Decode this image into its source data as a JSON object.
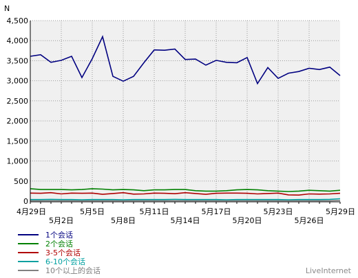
{
  "chart_data": {
    "type": "line",
    "ylabel": "N",
    "ylim": [
      0,
      4500
    ],
    "yticks": [
      0,
      500,
      1000,
      1500,
      2000,
      2500,
      3000,
      3500,
      4000,
      4500
    ],
    "ytick_labels": [
      "0",
      "500",
      "1,000",
      "1,500",
      "2,000",
      "2,500",
      "3,000",
      "3,500",
      "4,000",
      "4,500"
    ],
    "grid": true,
    "legend_position": "bottom-left",
    "x": [
      "4月29日",
      "4月30日",
      "5月1日",
      "5月2日",
      "5月3日",
      "5月4日",
      "5月5日",
      "5月6日",
      "5月7日",
      "5月8日",
      "5月9日",
      "5月10日",
      "5月11日",
      "5月12日",
      "5月13日",
      "5月14日",
      "5月15日",
      "5月16日",
      "5月17日",
      "5月18日",
      "5月19日",
      "5月20日",
      "5月21日",
      "5月22日",
      "5月23日",
      "5月24日",
      "5月25日",
      "5月26日",
      "5月27日",
      "5月28日",
      "5月29日"
    ],
    "xtick_labels": [
      {
        "i": 0,
        "label": "4月29日",
        "row": 0
      },
      {
        "i": 3,
        "label": "5月2日",
        "row": 1
      },
      {
        "i": 6,
        "label": "5月5日",
        "row": 0
      },
      {
        "i": 9,
        "label": "5月8日",
        "row": 1
      },
      {
        "i": 12,
        "label": "5月11日",
        "row": 0
      },
      {
        "i": 15,
        "label": "5月14日",
        "row": 1
      },
      {
        "i": 18,
        "label": "5月17日",
        "row": 0
      },
      {
        "i": 21,
        "label": "5月20日",
        "row": 1
      },
      {
        "i": 24,
        "label": "5月23日",
        "row": 0
      },
      {
        "i": 27,
        "label": "5月26日",
        "row": 1
      },
      {
        "i": 30,
        "label": "5月29日",
        "row": 0
      }
    ],
    "series": [
      {
        "name": "1个会话",
        "color": "#000080",
        "values": [
          3610,
          3650,
          3460,
          3510,
          3610,
          3080,
          3550,
          4100,
          3110,
          2990,
          3110,
          3450,
          3770,
          3760,
          3790,
          3530,
          3540,
          3390,
          3510,
          3460,
          3450,
          3580,
          2930,
          3330,
          3060,
          3190,
          3230,
          3310,
          3280,
          3340,
          3130
        ]
      },
      {
        "name": "2个会话",
        "color": "#008000",
        "values": [
          310,
          290,
          290,
          290,
          280,
          290,
          310,
          300,
          280,
          290,
          280,
          260,
          280,
          280,
          290,
          290,
          260,
          250,
          250,
          260,
          280,
          290,
          280,
          260,
          250,
          240,
          250,
          270,
          260,
          250,
          270
        ]
      },
      {
        "name": "3-5个会话",
        "color": "#b00000",
        "values": [
          200,
          195,
          210,
          180,
          200,
          195,
          200,
          170,
          190,
          210,
          175,
          180,
          200,
          195,
          185,
          210,
          190,
          170,
          195,
          200,
          200,
          195,
          180,
          190,
          200,
          155,
          150,
          180,
          175,
          180,
          195
        ]
      },
      {
        "name": "6-10个会话",
        "color": "#00a0a0",
        "values": [
          40,
          40,
          45,
          40,
          40,
          35,
          40,
          40,
          40,
          35,
          40,
          40,
          40,
          40,
          45,
          40,
          40,
          40,
          40,
          35,
          40,
          40,
          40,
          40,
          40,
          35,
          40,
          40,
          40,
          45,
          60
        ]
      },
      {
        "name": "10个以上的会话",
        "color": "#808080",
        "values": [
          10,
          10,
          10,
          10,
          10,
          10,
          10,
          10,
          10,
          10,
          10,
          10,
          10,
          10,
          10,
          10,
          10,
          10,
          10,
          10,
          10,
          10,
          10,
          10,
          10,
          10,
          10,
          10,
          10,
          10,
          15
        ]
      }
    ]
  },
  "legend": {
    "items": [
      {
        "label": "1个会话",
        "color": "#000080"
      },
      {
        "label": "2个会话",
        "color": "#008000"
      },
      {
        "label": "3-5个会话",
        "color": "#b00000"
      },
      {
        "label": "6-10个会话",
        "color": "#00a0a0"
      },
      {
        "label": "10个以上的会话",
        "color": "#808080"
      }
    ]
  },
  "branding": {
    "text": "LiveInternet"
  }
}
